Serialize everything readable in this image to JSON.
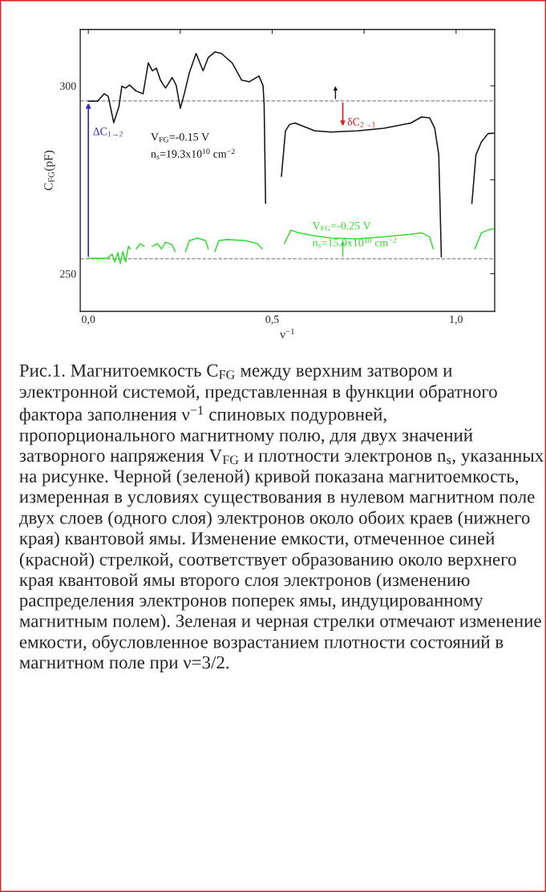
{
  "chart_data": {
    "type": "line",
    "xlabel": "ν$^{−1}$",
    "ylabel": "C$_{FG}$(pF)",
    "xlim": [
      -0.022,
      1.105
    ],
    "ylim": [
      240,
      315
    ],
    "xticks": [
      {
        "value": 0,
        "label": "0,0"
      },
      {
        "value": 0.25,
        "label": null
      },
      {
        "value": 0.5,
        "label": "0,5"
      },
      {
        "value": 0.75,
        "label": null
      },
      {
        "value": 1.0,
        "label": "1,0"
      }
    ],
    "yticks": [
      250,
      {
        "value": 275,
        "label": null
      },
      300
    ],
    "grid": false,
    "legend": false,
    "line_style": "solid",
    "marker": "none",
    "series": [
      {
        "name": "V$_{FG}$=-0.15 V\nn$_{s}$=19.3x10$^{10}$ cm$^{−2}$",
        "color": "#111111",
        "x": [
          0.0,
          0.025,
          0.043,
          0.054,
          0.069,
          0.083,
          0.091,
          0.101,
          0.112,
          0.13,
          0.149,
          0.163,
          0.174,
          0.185,
          0.196,
          0.21,
          0.228,
          0.239,
          0.25,
          0.261,
          0.275,
          0.293,
          0.312,
          0.326,
          0.344,
          0.362,
          0.391,
          0.417,
          0.438,
          0.464,
          0.475,
          0.478,
          0.482,
          0.484,
          0.522,
          0.525,
          0.536,
          0.547,
          0.562,
          0.609,
          0.616,
          0.659,
          0.732,
          0.804,
          0.877,
          0.906,
          0.928,
          0.942,
          0.953,
          0.96,
          0.964,
          1.04,
          1.043,
          1.054,
          1.069,
          1.087,
          1.103
        ],
        "values": [
          295.9,
          295.9,
          297.9,
          297.2,
          290.2,
          294.4,
          299.9,
          299.4,
          300.2,
          298.6,
          297.9,
          306.1,
          304.0,
          304.7,
          301.5,
          299.4,
          302.2,
          300.1,
          294.0,
          297.9,
          303.6,
          308.6,
          304.0,
          307.5,
          309.0,
          308.6,
          306.1,
          301.5,
          301.1,
          302.6,
          300.1,
          295.1,
          268.7,
          null,
          null,
          275.9,
          288.0,
          289.7,
          290.1,
          288.3,
          288.0,
          287.7,
          288.0,
          288.7,
          290.1,
          291.7,
          291.5,
          288.7,
          281.6,
          254.5,
          null,
          null,
          268.7,
          281.6,
          285.1,
          287.3,
          287.4
        ]
      },
      {
        "name": "V$_{FG}$=-0.25 V\nn$_{s}$=15.0x10$^{10}$ cm$^{−2}$",
        "color": "#33dd33",
        "x": [
          0.0,
          0.051,
          0.065,
          0.072,
          0.08,
          0.087,
          0.094,
          0.101,
          0.109,
          0.114,
          0.12,
          0.127,
          0.13,
          0.141,
          0.152,
          0.159,
          0.167,
          0.174,
          0.188,
          0.199,
          0.21,
          0.228,
          0.236,
          0.243,
          0.261,
          0.264,
          0.275,
          0.297,
          0.319,
          0.326,
          0.33,
          0.341,
          0.344,
          0.355,
          0.377,
          0.428,
          0.46,
          0.472,
          0.477,
          0.529,
          0.533,
          0.551,
          0.572,
          0.609,
          0.659,
          0.732,
          0.804,
          0.877,
          0.906,
          0.928,
          0.938,
          0.946,
          1.043,
          1.051,
          1.069,
          1.087,
          1.103
        ],
        "values": [
          254.1,
          254.1,
          255.2,
          253.1,
          255.6,
          252.7,
          255.9,
          253.1,
          257.3,
          256.6,
          null,
          null,
          256.6,
          258.0,
          257.3,
          null,
          null,
          257.3,
          258.0,
          256.6,
          258.4,
          257.7,
          255.9,
          null,
          null,
          255.9,
          258.8,
          259.5,
          258.8,
          256.6,
          null,
          null,
          255.9,
          258.8,
          259.1,
          258.8,
          258.0,
          256.6,
          null,
          null,
          258.0,
          261.6,
          260.9,
          260.2,
          259.5,
          259.3,
          259.8,
          260.5,
          260.9,
          259.8,
          256.6,
          null,
          null,
          256.6,
          260.9,
          261.6,
          262.0
        ]
      }
    ],
    "ref_lines": [
      {
        "axis": "y",
        "value": 296,
        "color": "#888888",
        "line_style": "dashed"
      },
      {
        "axis": "y",
        "value": 254,
        "color": "#888888",
        "line_style": "dashed"
      }
    ],
    "annotations": [
      {
        "text": "ΔC$_{1→2}$",
        "x": 0,
        "y": 296
      },
      {
        "text": "δC$_{2→1}$",
        "x": 0.692,
        "y": 288.7
      },
      "Рис.1. Магнитоемкость C$_{FG}$ между верхним затвором и электронной системой, представленная в функции обратного фактора заполнения ν$^{−1}$ спиновых подуровней, пропорционального магнитному полю, для двух значений затворного напряжения V$_{FG}$ и плотности электронов n$_{s}$, указанных на рисунке. Черной (зеленой) кривой показана магнитоемкость, измеренная в условиях существования в нулевом магнитном поле двух слоев (одного слоя) электронов около обоих краев (нижнего края) квантовой ямы. Изменение емкости, отмеченное синей (красной) стрелкой, соответствует образованию около верхнего края квантовой ямы второго слоя электронов (изменению распределения электронов поперек ямы, индуцированному магнитным полем). Зеленая и черная стрелки отмечают изменение емкости, обусловленное возрастанием плотности состояний в магнитном поле при ν=3/2."
    ]
  }
}
